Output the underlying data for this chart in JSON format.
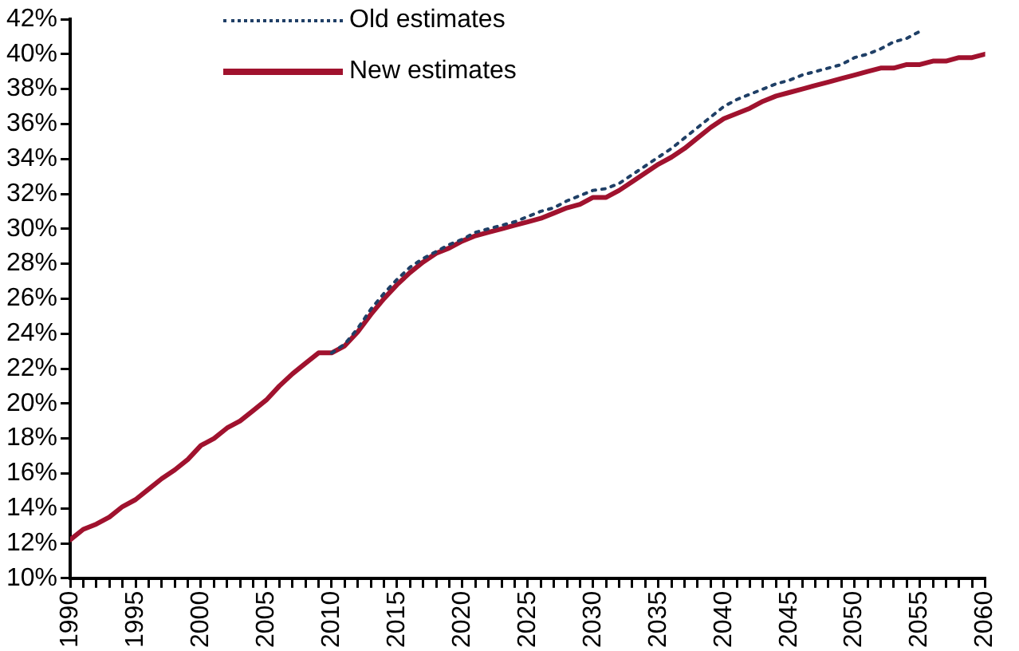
{
  "chart_data": {
    "type": "line",
    "xlim": [
      1990,
      2060
    ],
    "ylim": [
      10,
      42
    ],
    "yticks": [
      {
        "value": 10,
        "label": "10%"
      },
      {
        "value": 12,
        "label": "12%"
      },
      {
        "value": 14,
        "label": "14%"
      },
      {
        "value": 16,
        "label": "16%"
      },
      {
        "value": 18,
        "label": "18%"
      },
      {
        "value": 20,
        "label": "20%"
      },
      {
        "value": 22,
        "label": "22%"
      },
      {
        "value": 24,
        "label": "24%"
      },
      {
        "value": 26,
        "label": "26%"
      },
      {
        "value": 28,
        "label": "28%"
      },
      {
        "value": 30,
        "label": "30%"
      },
      {
        "value": 32,
        "label": "32%"
      },
      {
        "value": 34,
        "label": "34%"
      },
      {
        "value": 36,
        "label": "36%"
      },
      {
        "value": 38,
        "label": "38%"
      },
      {
        "value": 40,
        "label": "40%"
      },
      {
        "value": 42,
        "label": "42%"
      }
    ],
    "xticks": [
      1990,
      {
        "value": 1991,
        "label": null
      },
      {
        "value": 1992,
        "label": null
      },
      {
        "value": 1993,
        "label": null
      },
      {
        "value": 1994,
        "label": null
      },
      1995,
      {
        "value": 1996,
        "label": null
      },
      {
        "value": 1997,
        "label": null
      },
      {
        "value": 1998,
        "label": null
      },
      {
        "value": 1999,
        "label": null
      },
      2000,
      {
        "value": 2001,
        "label": null
      },
      {
        "value": 2002,
        "label": null
      },
      {
        "value": 2003,
        "label": null
      },
      {
        "value": 2004,
        "label": null
      },
      2005,
      {
        "value": 2006,
        "label": null
      },
      {
        "value": 2007,
        "label": null
      },
      {
        "value": 2008,
        "label": null
      },
      {
        "value": 2009,
        "label": null
      },
      2010,
      {
        "value": 2011,
        "label": null
      },
      {
        "value": 2012,
        "label": null
      },
      {
        "value": 2013,
        "label": null
      },
      {
        "value": 2014,
        "label": null
      },
      2015,
      {
        "value": 2016,
        "label": null
      },
      {
        "value": 2017,
        "label": null
      },
      {
        "value": 2018,
        "label": null
      },
      {
        "value": 2019,
        "label": null
      },
      2020,
      {
        "value": 2021,
        "label": null
      },
      {
        "value": 2022,
        "label": null
      },
      {
        "value": 2023,
        "label": null
      },
      {
        "value": 2024,
        "label": null
      },
      2025,
      {
        "value": 2026,
        "label": null
      },
      {
        "value": 2027,
        "label": null
      },
      {
        "value": 2028,
        "label": null
      },
      {
        "value": 2029,
        "label": null
      },
      2030,
      {
        "value": 2031,
        "label": null
      },
      {
        "value": 2032,
        "label": null
      },
      {
        "value": 2033,
        "label": null
      },
      {
        "value": 2034,
        "label": null
      },
      2035,
      {
        "value": 2036,
        "label": null
      },
      {
        "value": 2037,
        "label": null
      },
      {
        "value": 2038,
        "label": null
      },
      {
        "value": 2039,
        "label": null
      },
      2040,
      {
        "value": 2041,
        "label": null
      },
      {
        "value": 2042,
        "label": null
      },
      {
        "value": 2043,
        "label": null
      },
      {
        "value": 2044,
        "label": null
      },
      2045,
      {
        "value": 2046,
        "label": null
      },
      {
        "value": 2047,
        "label": null
      },
      {
        "value": 2048,
        "label": null
      },
      {
        "value": 2049,
        "label": null
      },
      2050,
      {
        "value": 2051,
        "label": null
      },
      {
        "value": 2052,
        "label": null
      },
      {
        "value": 2053,
        "label": null
      },
      {
        "value": 2054,
        "label": null
      },
      2055,
      {
        "value": 2056,
        "label": null
      },
      {
        "value": 2057,
        "label": null
      },
      {
        "value": 2058,
        "label": null
      },
      {
        "value": 2059,
        "label": null
      },
      2060
    ],
    "grid": false,
    "legend": "top",
    "marker": "none",
    "series": [
      {
        "name": "Old estimates",
        "color": "#1f3f66",
        "line_style": "dotted",
        "x": [
          2010,
          2011,
          2012,
          2013,
          2014,
          2015,
          2016,
          2017,
          2018,
          2019,
          2020,
          2021,
          2022,
          2023,
          2024,
          2025,
          2026,
          2027,
          2028,
          2029,
          2030,
          2031,
          2032,
          2033,
          2034,
          2035,
          2036,
          2037,
          2038,
          2039,
          2040,
          2041,
          2042,
          2043,
          2044,
          2045,
          2046,
          2047,
          2048,
          2049,
          2050,
          2051,
          2052,
          2053,
          2054,
          2055
        ],
        "values": [
          22.9,
          23.4,
          24.3,
          25.4,
          26.3,
          27.1,
          27.8,
          28.3,
          28.7,
          29.1,
          29.4,
          29.8,
          30.0,
          30.2,
          30.4,
          30.7,
          31.0,
          31.2,
          31.6,
          31.9,
          32.2,
          32.3,
          32.6,
          33.1,
          33.6,
          34.1,
          34.6,
          35.2,
          35.8,
          36.4,
          37.0,
          37.4,
          37.7,
          38.0,
          38.3,
          38.5,
          38.8,
          39.0,
          39.2,
          39.4,
          39.8,
          40.0,
          40.3,
          40.7,
          40.9,
          41.3
        ]
      },
      {
        "name": "New estimates",
        "color": "#a0122e",
        "line_style": "solid",
        "x": [
          1990,
          1991,
          1992,
          1993,
          1994,
          1995,
          1996,
          1997,
          1998,
          1999,
          2000,
          2001,
          2002,
          2003,
          2004,
          2005,
          2006,
          2007,
          2008,
          2009,
          2010,
          2011,
          2012,
          2013,
          2014,
          2015,
          2016,
          2017,
          2018,
          2019,
          2020,
          2021,
          2022,
          2023,
          2024,
          2025,
          2026,
          2027,
          2028,
          2029,
          2030,
          2031,
          2032,
          2033,
          2034,
          2035,
          2036,
          2037,
          2038,
          2039,
          2040,
          2041,
          2042,
          2043,
          2044,
          2045,
          2046,
          2047,
          2048,
          2049,
          2050,
          2051,
          2052,
          2053,
          2054,
          2055,
          2056,
          2057,
          2058,
          2059,
          2060
        ],
        "values": [
          12.2,
          12.8,
          13.1,
          13.5,
          14.1,
          14.5,
          15.1,
          15.7,
          16.2,
          16.8,
          17.6,
          18.0,
          18.6,
          19.0,
          19.6,
          20.2,
          21.0,
          21.7,
          22.3,
          22.9,
          22.9,
          23.3,
          24.1,
          25.1,
          26.0,
          26.8,
          27.5,
          28.1,
          28.6,
          28.9,
          29.3,
          29.6,
          29.8,
          30.0,
          30.2,
          30.4,
          30.6,
          30.9,
          31.2,
          31.4,
          31.8,
          31.8,
          32.2,
          32.7,
          33.2,
          33.7,
          34.1,
          34.6,
          35.2,
          35.8,
          36.3,
          36.6,
          36.9,
          37.3,
          37.6,
          37.8,
          38.0,
          38.2,
          38.4,
          38.6,
          38.8,
          39.0,
          39.2,
          39.2,
          39.4,
          39.4,
          39.6,
          39.6,
          39.8,
          39.8,
          40.0
        ]
      }
    ]
  }
}
